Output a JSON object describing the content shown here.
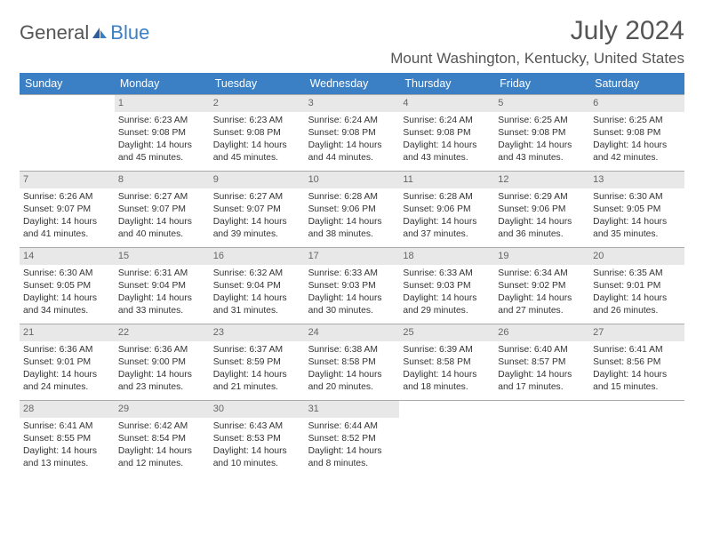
{
  "logo": {
    "part1": "General",
    "part2": "Blue"
  },
  "title": "July 2024",
  "location": "Mount Washington, Kentucky, United States",
  "colors": {
    "header_bg": "#3b7fc4",
    "header_fg": "#ffffff",
    "daynum_bg": "#e8e8e8",
    "daynum_fg": "#666666",
    "border": "#aaaaaa",
    "text": "#333333",
    "title_fg": "#555555"
  },
  "weekdays": [
    "Sunday",
    "Monday",
    "Tuesday",
    "Wednesday",
    "Thursday",
    "Friday",
    "Saturday"
  ],
  "cells": [
    {
      "empty": true
    },
    {
      "day": "1",
      "sunrise": "Sunrise: 6:23 AM",
      "sunset": "Sunset: 9:08 PM",
      "daylight1": "Daylight: 14 hours",
      "daylight2": "and 45 minutes."
    },
    {
      "day": "2",
      "sunrise": "Sunrise: 6:23 AM",
      "sunset": "Sunset: 9:08 PM",
      "daylight1": "Daylight: 14 hours",
      "daylight2": "and 45 minutes."
    },
    {
      "day": "3",
      "sunrise": "Sunrise: 6:24 AM",
      "sunset": "Sunset: 9:08 PM",
      "daylight1": "Daylight: 14 hours",
      "daylight2": "and 44 minutes."
    },
    {
      "day": "4",
      "sunrise": "Sunrise: 6:24 AM",
      "sunset": "Sunset: 9:08 PM",
      "daylight1": "Daylight: 14 hours",
      "daylight2": "and 43 minutes."
    },
    {
      "day": "5",
      "sunrise": "Sunrise: 6:25 AM",
      "sunset": "Sunset: 9:08 PM",
      "daylight1": "Daylight: 14 hours",
      "daylight2": "and 43 minutes."
    },
    {
      "day": "6",
      "sunrise": "Sunrise: 6:25 AM",
      "sunset": "Sunset: 9:08 PM",
      "daylight1": "Daylight: 14 hours",
      "daylight2": "and 42 minutes."
    },
    {
      "day": "7",
      "sunrise": "Sunrise: 6:26 AM",
      "sunset": "Sunset: 9:07 PM",
      "daylight1": "Daylight: 14 hours",
      "daylight2": "and 41 minutes."
    },
    {
      "day": "8",
      "sunrise": "Sunrise: 6:27 AM",
      "sunset": "Sunset: 9:07 PM",
      "daylight1": "Daylight: 14 hours",
      "daylight2": "and 40 minutes."
    },
    {
      "day": "9",
      "sunrise": "Sunrise: 6:27 AM",
      "sunset": "Sunset: 9:07 PM",
      "daylight1": "Daylight: 14 hours",
      "daylight2": "and 39 minutes."
    },
    {
      "day": "10",
      "sunrise": "Sunrise: 6:28 AM",
      "sunset": "Sunset: 9:06 PM",
      "daylight1": "Daylight: 14 hours",
      "daylight2": "and 38 minutes."
    },
    {
      "day": "11",
      "sunrise": "Sunrise: 6:28 AM",
      "sunset": "Sunset: 9:06 PM",
      "daylight1": "Daylight: 14 hours",
      "daylight2": "and 37 minutes."
    },
    {
      "day": "12",
      "sunrise": "Sunrise: 6:29 AM",
      "sunset": "Sunset: 9:06 PM",
      "daylight1": "Daylight: 14 hours",
      "daylight2": "and 36 minutes."
    },
    {
      "day": "13",
      "sunrise": "Sunrise: 6:30 AM",
      "sunset": "Sunset: 9:05 PM",
      "daylight1": "Daylight: 14 hours",
      "daylight2": "and 35 minutes."
    },
    {
      "day": "14",
      "sunrise": "Sunrise: 6:30 AM",
      "sunset": "Sunset: 9:05 PM",
      "daylight1": "Daylight: 14 hours",
      "daylight2": "and 34 minutes."
    },
    {
      "day": "15",
      "sunrise": "Sunrise: 6:31 AM",
      "sunset": "Sunset: 9:04 PM",
      "daylight1": "Daylight: 14 hours",
      "daylight2": "and 33 minutes."
    },
    {
      "day": "16",
      "sunrise": "Sunrise: 6:32 AM",
      "sunset": "Sunset: 9:04 PM",
      "daylight1": "Daylight: 14 hours",
      "daylight2": "and 31 minutes."
    },
    {
      "day": "17",
      "sunrise": "Sunrise: 6:33 AM",
      "sunset": "Sunset: 9:03 PM",
      "daylight1": "Daylight: 14 hours",
      "daylight2": "and 30 minutes."
    },
    {
      "day": "18",
      "sunrise": "Sunrise: 6:33 AM",
      "sunset": "Sunset: 9:03 PM",
      "daylight1": "Daylight: 14 hours",
      "daylight2": "and 29 minutes."
    },
    {
      "day": "19",
      "sunrise": "Sunrise: 6:34 AM",
      "sunset": "Sunset: 9:02 PM",
      "daylight1": "Daylight: 14 hours",
      "daylight2": "and 27 minutes."
    },
    {
      "day": "20",
      "sunrise": "Sunrise: 6:35 AM",
      "sunset": "Sunset: 9:01 PM",
      "daylight1": "Daylight: 14 hours",
      "daylight2": "and 26 minutes."
    },
    {
      "day": "21",
      "sunrise": "Sunrise: 6:36 AM",
      "sunset": "Sunset: 9:01 PM",
      "daylight1": "Daylight: 14 hours",
      "daylight2": "and 24 minutes."
    },
    {
      "day": "22",
      "sunrise": "Sunrise: 6:36 AM",
      "sunset": "Sunset: 9:00 PM",
      "daylight1": "Daylight: 14 hours",
      "daylight2": "and 23 minutes."
    },
    {
      "day": "23",
      "sunrise": "Sunrise: 6:37 AM",
      "sunset": "Sunset: 8:59 PM",
      "daylight1": "Daylight: 14 hours",
      "daylight2": "and 21 minutes."
    },
    {
      "day": "24",
      "sunrise": "Sunrise: 6:38 AM",
      "sunset": "Sunset: 8:58 PM",
      "daylight1": "Daylight: 14 hours",
      "daylight2": "and 20 minutes."
    },
    {
      "day": "25",
      "sunrise": "Sunrise: 6:39 AM",
      "sunset": "Sunset: 8:58 PM",
      "daylight1": "Daylight: 14 hours",
      "daylight2": "and 18 minutes."
    },
    {
      "day": "26",
      "sunrise": "Sunrise: 6:40 AM",
      "sunset": "Sunset: 8:57 PM",
      "daylight1": "Daylight: 14 hours",
      "daylight2": "and 17 minutes."
    },
    {
      "day": "27",
      "sunrise": "Sunrise: 6:41 AM",
      "sunset": "Sunset: 8:56 PM",
      "daylight1": "Daylight: 14 hours",
      "daylight2": "and 15 minutes."
    },
    {
      "day": "28",
      "sunrise": "Sunrise: 6:41 AM",
      "sunset": "Sunset: 8:55 PM",
      "daylight1": "Daylight: 14 hours",
      "daylight2": "and 13 minutes."
    },
    {
      "day": "29",
      "sunrise": "Sunrise: 6:42 AM",
      "sunset": "Sunset: 8:54 PM",
      "daylight1": "Daylight: 14 hours",
      "daylight2": "and 12 minutes."
    },
    {
      "day": "30",
      "sunrise": "Sunrise: 6:43 AM",
      "sunset": "Sunset: 8:53 PM",
      "daylight1": "Daylight: 14 hours",
      "daylight2": "and 10 minutes."
    },
    {
      "day": "31",
      "sunrise": "Sunrise: 6:44 AM",
      "sunset": "Sunset: 8:52 PM",
      "daylight1": "Daylight: 14 hours",
      "daylight2": "and 8 minutes."
    },
    {
      "empty": true
    },
    {
      "empty": true
    },
    {
      "empty": true
    }
  ]
}
